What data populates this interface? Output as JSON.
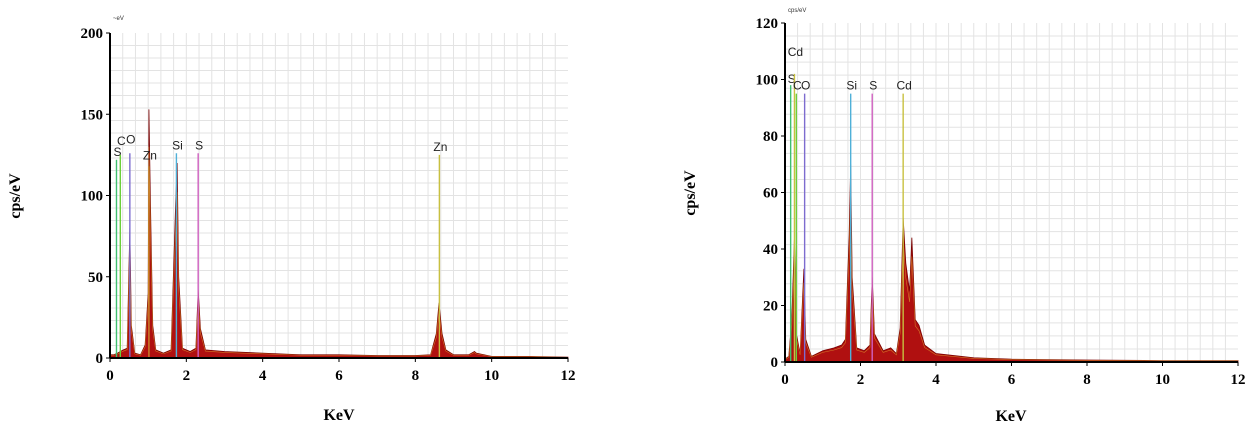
{
  "chart_data": [
    {
      "type": "line",
      "title": "",
      "xlabel": "KeV",
      "ylabel": "cps/eV",
      "unit_text": "~eV",
      "xlim": [
        0,
        12
      ],
      "ylim": [
        0,
        200
      ],
      "xticks": [
        0,
        2,
        4,
        6,
        8,
        10,
        12
      ],
      "yticks": [
        0,
        50,
        100,
        150,
        200
      ],
      "grid": true,
      "legend": "none",
      "series": [
        {
          "values": [
            [
              0.0,
              2
            ],
            [
              0.1,
              2
            ],
            [
              0.2,
              3
            ],
            [
              0.27,
              4
            ],
            [
              0.35,
              5
            ],
            [
              0.45,
              6
            ],
            [
              0.52,
              80
            ],
            [
              0.56,
              20
            ],
            [
              0.65,
              3
            ],
            [
              0.8,
              2
            ],
            [
              0.92,
              8
            ],
            [
              1.0,
              40
            ],
            [
              1.02,
              153
            ],
            [
              1.06,
              95
            ],
            [
              1.12,
              20
            ],
            [
              1.2,
              5
            ],
            [
              1.4,
              3
            ],
            [
              1.6,
              5
            ],
            [
              1.72,
              95
            ],
            [
              1.76,
              120
            ],
            [
              1.8,
              50
            ],
            [
              1.9,
              6
            ],
            [
              2.1,
              4
            ],
            [
              2.25,
              6
            ],
            [
              2.31,
              42
            ],
            [
              2.37,
              18
            ],
            [
              2.5,
              5
            ],
            [
              3.0,
              4
            ],
            [
              4.0,
              3
            ],
            [
              5.0,
              2
            ],
            [
              6.0,
              2
            ],
            [
              7.0,
              1.5
            ],
            [
              8.0,
              1.5
            ],
            [
              8.4,
              2
            ],
            [
              8.55,
              15
            ],
            [
              8.62,
              34
            ],
            [
              8.7,
              15
            ],
            [
              8.8,
              5
            ],
            [
              9.0,
              2
            ],
            [
              9.4,
              2
            ],
            [
              9.55,
              4
            ],
            [
              9.6,
              3
            ],
            [
              10.0,
              1
            ],
            [
              11.0,
              1
            ],
            [
              12.0,
              0.5
            ]
          ]
        }
      ],
      "element_lines": [
        {
          "label": "S",
          "x": 0.17,
          "height": 122,
          "color": "#3fbf6f"
        },
        {
          "label": "C",
          "x": 0.27,
          "height": 125,
          "color": "#6ccf3a"
        },
        {
          "label": "O",
          "x": 0.52,
          "height": 126,
          "color": "#7d6ccf"
        },
        {
          "label": "Zn",
          "x": 1.02,
          "height": 118,
          "color": "#c98a2a"
        },
        {
          "label": "Si",
          "x": 1.74,
          "height": 126,
          "color": "#4fb0d8"
        },
        {
          "label": "S",
          "x": 2.31,
          "height": 126,
          "color": "#d060c0"
        },
        {
          "label": "Zn",
          "x": 8.63,
          "height": 125,
          "color": "#c8c040"
        }
      ]
    },
    {
      "type": "line",
      "title": "",
      "xlabel": "KeV",
      "ylabel": "cps/eV",
      "unit_text": "cps/eV",
      "xlim": [
        0,
        12
      ],
      "ylim": [
        0,
        120
      ],
      "xticks": [
        0,
        2,
        4,
        6,
        8,
        10,
        12
      ],
      "yticks": [
        0,
        20,
        40,
        60,
        80,
        100,
        120
      ],
      "grid": true,
      "legend": "none",
      "series": [
        {
          "values": [
            [
              0.0,
              1
            ],
            [
              0.1,
              2
            ],
            [
              0.18,
              15
            ],
            [
              0.25,
              44
            ],
            [
              0.3,
              10
            ],
            [
              0.4,
              3
            ],
            [
              0.5,
              33
            ],
            [
              0.55,
              8
            ],
            [
              0.7,
              2
            ],
            [
              1.0,
              4
            ],
            [
              1.3,
              5
            ],
            [
              1.5,
              6
            ],
            [
              1.6,
              8
            ],
            [
              1.7,
              45
            ],
            [
              1.74,
              70
            ],
            [
              1.78,
              30
            ],
            [
              1.9,
              5
            ],
            [
              2.1,
              4
            ],
            [
              2.25,
              6
            ],
            [
              2.31,
              30
            ],
            [
              2.37,
              10
            ],
            [
              2.6,
              4
            ],
            [
              2.8,
              5
            ],
            [
              2.95,
              3
            ],
            [
              3.05,
              12
            ],
            [
              3.13,
              51
            ],
            [
              3.2,
              35
            ],
            [
              3.3,
              25
            ],
            [
              3.36,
              44
            ],
            [
              3.45,
              15
            ],
            [
              3.55,
              13
            ],
            [
              3.7,
              6
            ],
            [
              4.0,
              3
            ],
            [
              5.0,
              1.5
            ],
            [
              6.0,
              1
            ],
            [
              8.0,
              0.7
            ],
            [
              10.0,
              0.5
            ],
            [
              12.0,
              0.5
            ]
          ]
        }
      ],
      "element_lines": [
        {
          "label": "S",
          "x": 0.15,
          "height": 98,
          "color": "#3fbf6f"
        },
        {
          "label": "Cd",
          "x": 0.25,
          "height": 102,
          "color": "#c8c040"
        },
        {
          "label": "C",
          "x": 0.3,
          "height": 95,
          "color": "#6ccf3a"
        },
        {
          "label": "O",
          "x": 0.52,
          "height": 95,
          "color": "#7d6ccf"
        },
        {
          "label": "Si",
          "x": 1.74,
          "height": 95,
          "color": "#4fb0d8"
        },
        {
          "label": "S",
          "x": 2.31,
          "height": 95,
          "color": "#d060c0"
        },
        {
          "label": "Cd",
          "x": 3.13,
          "height": 95,
          "color": "#c8c040"
        }
      ]
    }
  ]
}
